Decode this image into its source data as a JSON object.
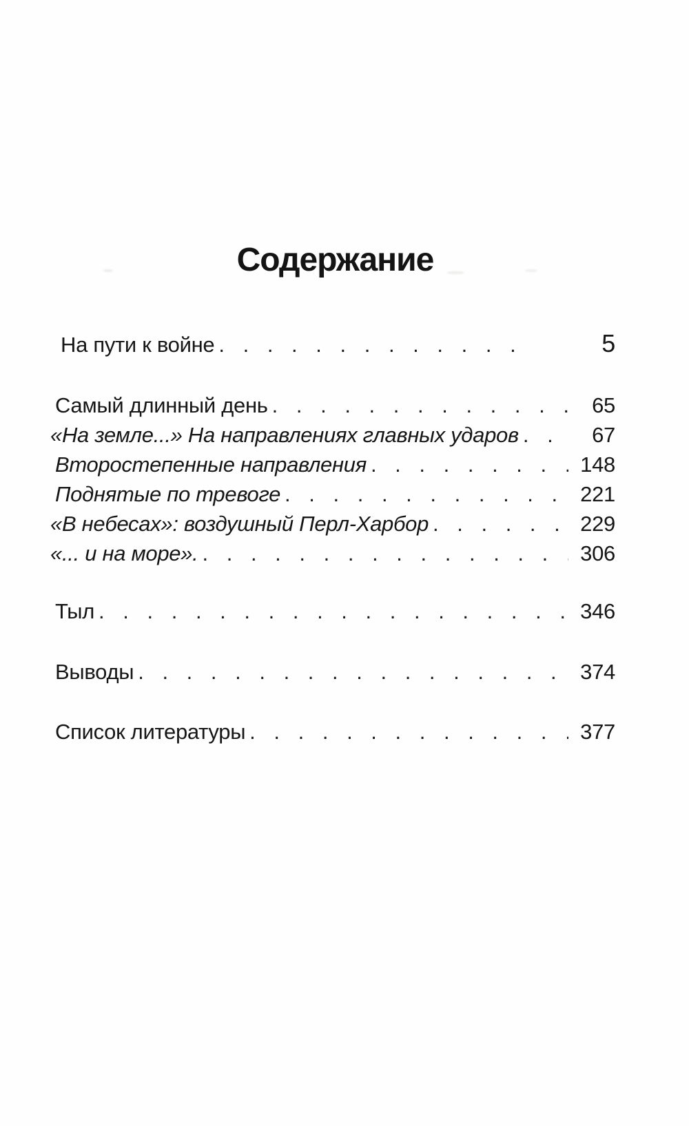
{
  "toc": {
    "title": "Содержание",
    "leader_dot": ".",
    "entries": [
      {
        "label": "На пути к войне",
        "page": "5",
        "italic": false,
        "group": "solo-first"
      },
      {
        "label": "Самый длинный день",
        "page": "65",
        "italic": false,
        "group": "main"
      },
      {
        "label": "«На земле...» На направлениях главных ударов",
        "page": "67",
        "italic": true,
        "group": "main"
      },
      {
        "label": "Второстепенные направления",
        "page": "148",
        "italic": true,
        "group": "main"
      },
      {
        "label": "Поднятые по тревоге",
        "page": "221",
        "italic": true,
        "group": "main"
      },
      {
        "label": "«В небесах»: воздушный Перл-Харбор",
        "page": "229",
        "italic": true,
        "group": "main"
      },
      {
        "label": "«... и на море».",
        "page": "306",
        "italic": true,
        "group": "main"
      },
      {
        "label": "Тыл",
        "page": "346",
        "italic": false,
        "group": "tyl"
      },
      {
        "label": "Выводы",
        "page": "374",
        "italic": false,
        "group": "vyvody"
      },
      {
        "label": "Список литературы",
        "page": "377",
        "italic": false,
        "group": "spisok"
      }
    ]
  }
}
